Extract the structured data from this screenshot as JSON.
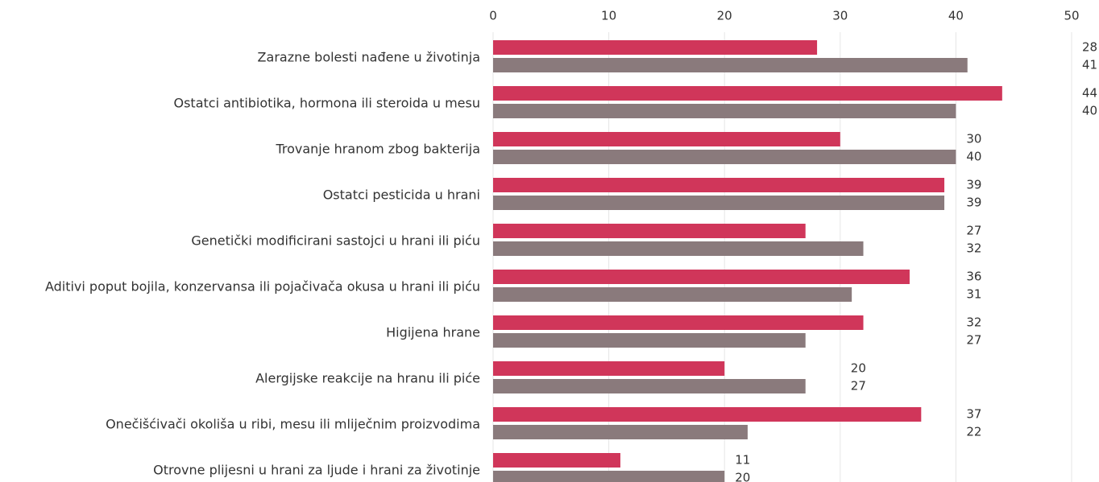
{
  "chart_data": {
    "type": "bar",
    "orientation": "horizontal",
    "categories": [
      "Zarazne bolesti nađene u životinja",
      "Ostatci antibiotika, hormona ili steroida u mesu",
      "Trovanje hranom zbog bakterija",
      "Ostatci pesticida u hrani",
      "Genetički modificirani sastojci u hrani ili piću",
      "Aditivi poput bojila, konzervansa ili pojačivača okusa u hrani ili piću",
      "Higijena hrane",
      "Alergijske reakcije na hranu ili piće",
      "Onečišćivači okoliša u ribi, mesu ili mliječnim proizvodima",
      "Otrovne plijesni u hrani za ljude i hrani za životinje"
    ],
    "series": [
      {
        "color": "#d0365a",
        "values": [
          28,
          44,
          30,
          39,
          27,
          36,
          32,
          20,
          37,
          11
        ]
      },
      {
        "color": "#8a7a7c",
        "values": [
          41,
          40,
          40,
          39,
          32,
          31,
          27,
          27,
          22,
          20
        ]
      }
    ],
    "xlim": [
      0,
      50
    ],
    "xticks": [
      0,
      10,
      20,
      30,
      40,
      50
    ],
    "grid": true
  }
}
